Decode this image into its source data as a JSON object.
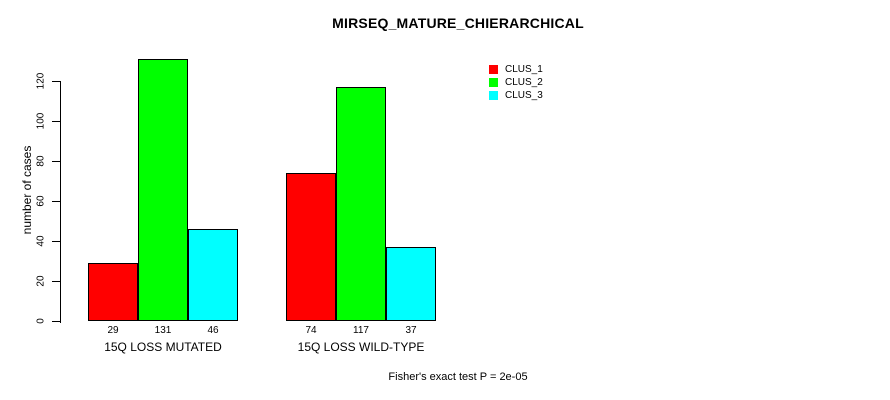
{
  "chart_data": {
    "type": "bar",
    "title": "MIRSEQ_MATURE_CHIERARCHICAL",
    "xlabel": "",
    "ylabel": "number of cases",
    "categories": [
      "15Q LOSS MUTATED",
      "15Q LOSS WILD-TYPE"
    ],
    "series": [
      {
        "name": "CLUS_1",
        "color": "#ff0000",
        "values": [
          29,
          74
        ]
      },
      {
        "name": "CLUS_2",
        "color": "#00ff00",
        "values": [
          131,
          117
        ]
      },
      {
        "name": "CLUS_3",
        "color": "#00ffff",
        "values": [
          46,
          37
        ]
      }
    ],
    "bar_value_labels": [
      [
        "29",
        "131",
        "46"
      ],
      [
        "74",
        "117",
        "37"
      ]
    ],
    "yticks": [
      "0",
      "20",
      "40",
      "60",
      "80",
      "100",
      "120"
    ],
    "ylim": [
      0,
      131
    ],
    "grid": false,
    "legend_position": "top-right",
    "legend_box": false,
    "annotation": "Fisher's exact test P = 2e-05",
    "axis_color": "#000000",
    "bar_border_color": "#000000"
  }
}
